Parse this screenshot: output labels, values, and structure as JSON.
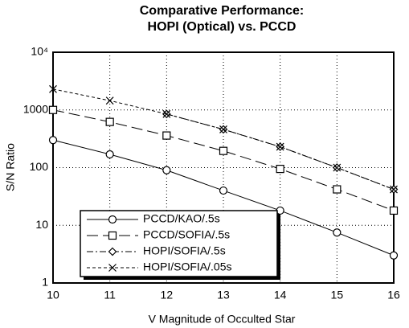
{
  "chart_data": {
    "type": "line",
    "title": [
      "Comparative Performance:",
      "HOPI (Optical) vs. PCCD"
    ],
    "x_label": "V Magnitude of Occulted Star",
    "y_label": "S/N Ratio",
    "x": [
      10,
      11,
      12,
      13,
      14,
      15,
      16
    ],
    "xlim": [
      10,
      16
    ],
    "xticks": [
      10,
      11,
      12,
      13,
      14,
      15,
      16
    ],
    "ylim": [
      1,
      10000
    ],
    "yticks": [
      1,
      10,
      100,
      1000,
      {
        "value": 10000,
        "label": "10⁴"
      }
    ],
    "y_log": true,
    "grid": true,
    "series": [
      {
        "name": "PCCD/KAO/.5s",
        "color": "#000000",
        "marker": "circle",
        "dash": "solid",
        "values": [
          300,
          170,
          90,
          40,
          18,
          7.5,
          3
        ]
      },
      {
        "name": "PCCD/SOFIA/.5s",
        "color": "#000000",
        "marker": "square",
        "dash": "long",
        "values": [
          1000,
          620,
          360,
          195,
          95,
          42,
          18
        ]
      },
      {
        "name": "HOPI/SOFIA/.5s",
        "color": "#000000",
        "marker": "diamond",
        "dash": "dashdot",
        "values": [
          null,
          null,
          850,
          460,
          230,
          100,
          42
        ]
      },
      {
        "name": "HOPI/SOFIA/.05s",
        "color": "#000000",
        "marker": "x",
        "dash": "short",
        "values": [
          2300,
          1450,
          850,
          460,
          230,
          100,
          42
        ]
      }
    ]
  }
}
